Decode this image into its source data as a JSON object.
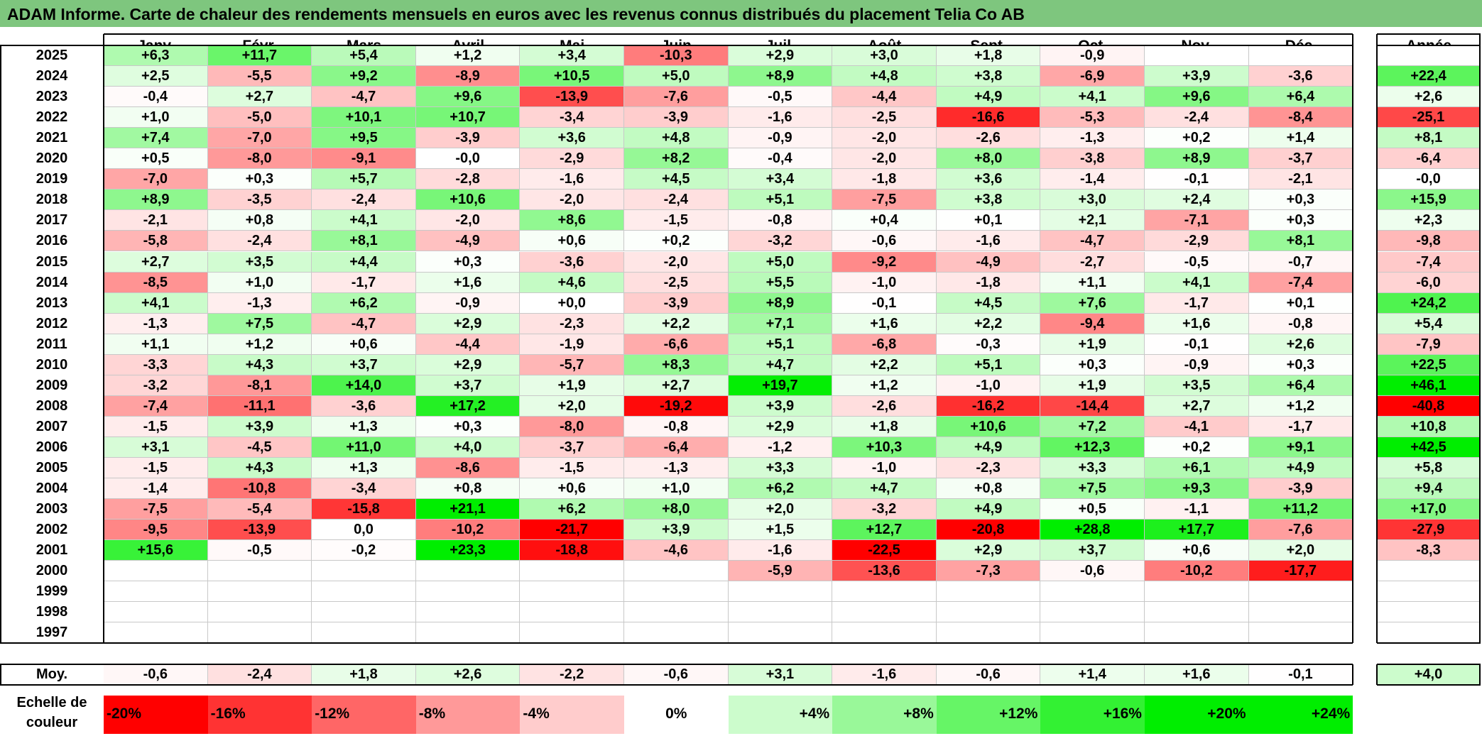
{
  "title": "ADAM Informe. Carte de chaleur des rendements mensuels en euros avec les revenus connus distribués du placement Telia Co AB",
  "months": [
    "Janv.",
    "Févr.",
    "Mars",
    "Avril",
    "Mai",
    "Juin",
    "Juil.",
    "Août",
    "Sept.",
    "Oct.",
    "Nov.",
    "Déc."
  ],
  "annual_header": "Année",
  "avg_label": "Moy.",
  "legend_title": "Echelle de couleur",
  "colors": {
    "title_bg": "#7ec67e",
    "negative": "#ff0000",
    "neutral": "#ffffff",
    "positive": "#00ee00"
  },
  "chart_data": {
    "type": "heatmap",
    "title": "ADAM Informe. Carte de chaleur des rendements mensuels en euros avec les revenus connus distribués du placement Telia Co AB",
    "columns": [
      "Janv.",
      "Févr.",
      "Mars",
      "Avril",
      "Mai",
      "Juin",
      "Juil.",
      "Août",
      "Sept.",
      "Oct.",
      "Nov.",
      "Déc."
    ],
    "rows": [
      {
        "year": "2025",
        "values": [
          "+6,3",
          "+11,7",
          "+5,4",
          "+1,2",
          "+3,4",
          "-10,3",
          "+2,9",
          "+3,0",
          "+1,8",
          "-0,9",
          "",
          ""
        ],
        "annual": ""
      },
      {
        "year": "2024",
        "values": [
          "+2,5",
          "-5,5",
          "+9,2",
          "-8,9",
          "+10,5",
          "+5,0",
          "+8,9",
          "+4,8",
          "+3,8",
          "-6,9",
          "+3,9",
          "-3,6"
        ],
        "annual": "+22,4"
      },
      {
        "year": "2023",
        "values": [
          "-0,4",
          "+2,7",
          "-4,7",
          "+9,6",
          "-13,9",
          "-7,6",
          "-0,5",
          "-4,4",
          "+4,9",
          "+4,1",
          "+9,6",
          "+6,4"
        ],
        "annual": "+2,6"
      },
      {
        "year": "2022",
        "values": [
          "+1,0",
          "-5,0",
          "+10,1",
          "+10,7",
          "-3,4",
          "-3,9",
          "-1,6",
          "-2,5",
          "-16,6",
          "-5,3",
          "-2,4",
          "-8,4"
        ],
        "annual": "-25,1"
      },
      {
        "year": "2021",
        "values": [
          "+7,4",
          "-7,0",
          "+9,5",
          "-3,9",
          "+3,6",
          "+4,8",
          "-0,9",
          "-2,0",
          "-2,6",
          "-1,3",
          "+0,2",
          "+1,4"
        ],
        "annual": "+8,1"
      },
      {
        "year": "2020",
        "values": [
          "+0,5",
          "-8,0",
          "-9,1",
          "-0,0",
          "-2,9",
          "+8,2",
          "-0,4",
          "-2,0",
          "+8,0",
          "-3,8",
          "+8,9",
          "-3,7"
        ],
        "annual": "-6,4"
      },
      {
        "year": "2019",
        "values": [
          "-7,0",
          "+0,3",
          "+5,7",
          "-2,8",
          "-1,6",
          "+4,5",
          "+3,4",
          "-1,8",
          "+3,6",
          "-1,4",
          "-0,1",
          "-2,1"
        ],
        "annual": "-0,0"
      },
      {
        "year": "2018",
        "values": [
          "+8,9",
          "-3,5",
          "-2,4",
          "+10,6",
          "-2,0",
          "-2,4",
          "+5,1",
          "-7,5",
          "+3,8",
          "+3,0",
          "+2,4",
          "+0,3"
        ],
        "annual": "+15,9"
      },
      {
        "year": "2017",
        "values": [
          "-2,1",
          "+0,8",
          "+4,1",
          "-2,0",
          "+8,6",
          "-1,5",
          "-0,8",
          "+0,4",
          "+0,1",
          "+2,1",
          "-7,1",
          "+0,3"
        ],
        "annual": "+2,3"
      },
      {
        "year": "2016",
        "values": [
          "-5,8",
          "-2,4",
          "+8,1",
          "-4,9",
          "+0,6",
          "+0,2",
          "-3,2",
          "-0,6",
          "-1,6",
          "-4,7",
          "-2,9",
          "+8,1"
        ],
        "annual": "-9,8"
      },
      {
        "year": "2015",
        "values": [
          "+2,7",
          "+3,5",
          "+4,4",
          "+0,3",
          "-3,6",
          "-2,0",
          "+5,0",
          "-9,2",
          "-4,9",
          "-2,7",
          "-0,5",
          "-0,7"
        ],
        "annual": "-7,4"
      },
      {
        "year": "2014",
        "values": [
          "-8,5",
          "+1,0",
          "-1,7",
          "+1,6",
          "+4,6",
          "-2,5",
          "+5,5",
          "-1,0",
          "-1,8",
          "+1,1",
          "+4,1",
          "-7,4"
        ],
        "annual": "-6,0"
      },
      {
        "year": "2013",
        "values": [
          "+4,1",
          "-1,3",
          "+6,2",
          "-0,9",
          "+0,0",
          "-3,9",
          "+8,9",
          "-0,1",
          "+4,5",
          "+7,6",
          "-1,7",
          "+0,1"
        ],
        "annual": "+24,2"
      },
      {
        "year": "2012",
        "values": [
          "-1,3",
          "+7,5",
          "-4,7",
          "+2,9",
          "-2,3",
          "+2,2",
          "+7,1",
          "+1,6",
          "+2,2",
          "-9,4",
          "+1,6",
          "-0,8"
        ],
        "annual": "+5,4"
      },
      {
        "year": "2011",
        "values": [
          "+1,1",
          "+1,2",
          "+0,6",
          "-4,4",
          "-1,9",
          "-6,6",
          "+5,1",
          "-6,8",
          "-0,3",
          "+1,9",
          "-0,1",
          "+2,6"
        ],
        "annual": "-7,9"
      },
      {
        "year": "2010",
        "values": [
          "-3,3",
          "+4,3",
          "+3,7",
          "+2,9",
          "-5,7",
          "+8,3",
          "+4,7",
          "+2,2",
          "+5,1",
          "+0,3",
          "-0,9",
          "+0,3"
        ],
        "annual": "+22,5"
      },
      {
        "year": "2009",
        "values": [
          "-3,2",
          "-8,1",
          "+14,0",
          "+3,7",
          "+1,9",
          "+2,7",
          "+19,7",
          "+1,2",
          "-1,0",
          "+1,9",
          "+3,5",
          "+6,4"
        ],
        "annual": "+46,1"
      },
      {
        "year": "2008",
        "values": [
          "-7,4",
          "-11,1",
          "-3,6",
          "+17,2",
          "+2,0",
          "-19,2",
          "+3,9",
          "-2,6",
          "-16,2",
          "-14,4",
          "+2,7",
          "+1,2"
        ],
        "annual": "-40,8"
      },
      {
        "year": "2007",
        "values": [
          "-1,5",
          "+3,9",
          "+1,3",
          "+0,3",
          "-8,0",
          "-0,8",
          "+2,9",
          "+1,8",
          "+10,6",
          "+7,2",
          "-4,1",
          "-1,7"
        ],
        "annual": "+10,8"
      },
      {
        "year": "2006",
        "values": [
          "+3,1",
          "-4,5",
          "+11,0",
          "+4,0",
          "-3,7",
          "-6,4",
          "-1,2",
          "+10,3",
          "+4,9",
          "+12,3",
          "+0,2",
          "+9,1"
        ],
        "annual": "+42,5"
      },
      {
        "year": "2005",
        "values": [
          "-1,5",
          "+4,3",
          "+1,3",
          "-8,6",
          "-1,5",
          "-1,3",
          "+3,3",
          "-1,0",
          "-2,3",
          "+3,3",
          "+6,1",
          "+4,9"
        ],
        "annual": "+5,8"
      },
      {
        "year": "2004",
        "values": [
          "-1,4",
          "-10,8",
          "-3,4",
          "+0,8",
          "+0,6",
          "+1,0",
          "+6,2",
          "+4,7",
          "+0,8",
          "+7,5",
          "+9,3",
          "-3,9"
        ],
        "annual": "+9,4"
      },
      {
        "year": "2003",
        "values": [
          "-7,5",
          "-5,4",
          "-15,8",
          "+21,1",
          "+6,2",
          "+8,0",
          "+2,0",
          "-3,2",
          "+4,9",
          "+0,5",
          "-1,1",
          "+11,2"
        ],
        "annual": "+17,0"
      },
      {
        "year": "2002",
        "values": [
          "-9,5",
          "-13,9",
          "0,0",
          "-10,2",
          "-21,7",
          "+3,9",
          "+1,5",
          "+12,7",
          "-20,8",
          "+28,8",
          "+17,7",
          "-7,6"
        ],
        "annual": "-27,9"
      },
      {
        "year": "2001",
        "values": [
          "+15,6",
          "-0,5",
          "-0,2",
          "+23,3",
          "-18,8",
          "-4,6",
          "-1,6",
          "-22,5",
          "+2,9",
          "+3,7",
          "+0,6",
          "+2,0"
        ],
        "annual": "-8,3"
      },
      {
        "year": "2000",
        "values": [
          "",
          "",
          "",
          "",
          "",
          "",
          "-5,9",
          "-13,6",
          "-7,3",
          "-0,6",
          "-10,2",
          "-17,7"
        ],
        "annual": ""
      },
      {
        "year": "1999",
        "values": [
          "",
          "",
          "",
          "",
          "",
          "",
          "",
          "",
          "",
          "",
          "",
          ""
        ],
        "annual": ""
      },
      {
        "year": "1998",
        "values": [
          "",
          "",
          "",
          "",
          "",
          "",
          "",
          "",
          "",
          "",
          "",
          ""
        ],
        "annual": ""
      },
      {
        "year": "1997",
        "values": [
          "",
          "",
          "",
          "",
          "",
          "",
          "",
          "",
          "",
          "",
          "",
          ""
        ],
        "annual": ""
      }
    ],
    "averages": [
      "-0,6",
      "-2,4",
      "+1,8",
      "+2,6",
      "-2,2",
      "-0,6",
      "+3,1",
      "-1,6",
      "-0,6",
      "+1,4",
      "+1,6",
      "-0,1"
    ],
    "average_annual": "+4,0",
    "color_scale": [
      "-20%",
      "-16%",
      "-12%",
      "-8%",
      "-4%",
      "0%",
      "+4%",
      "+8%",
      "+12%",
      "+16%",
      "+20%",
      "+24%"
    ]
  }
}
